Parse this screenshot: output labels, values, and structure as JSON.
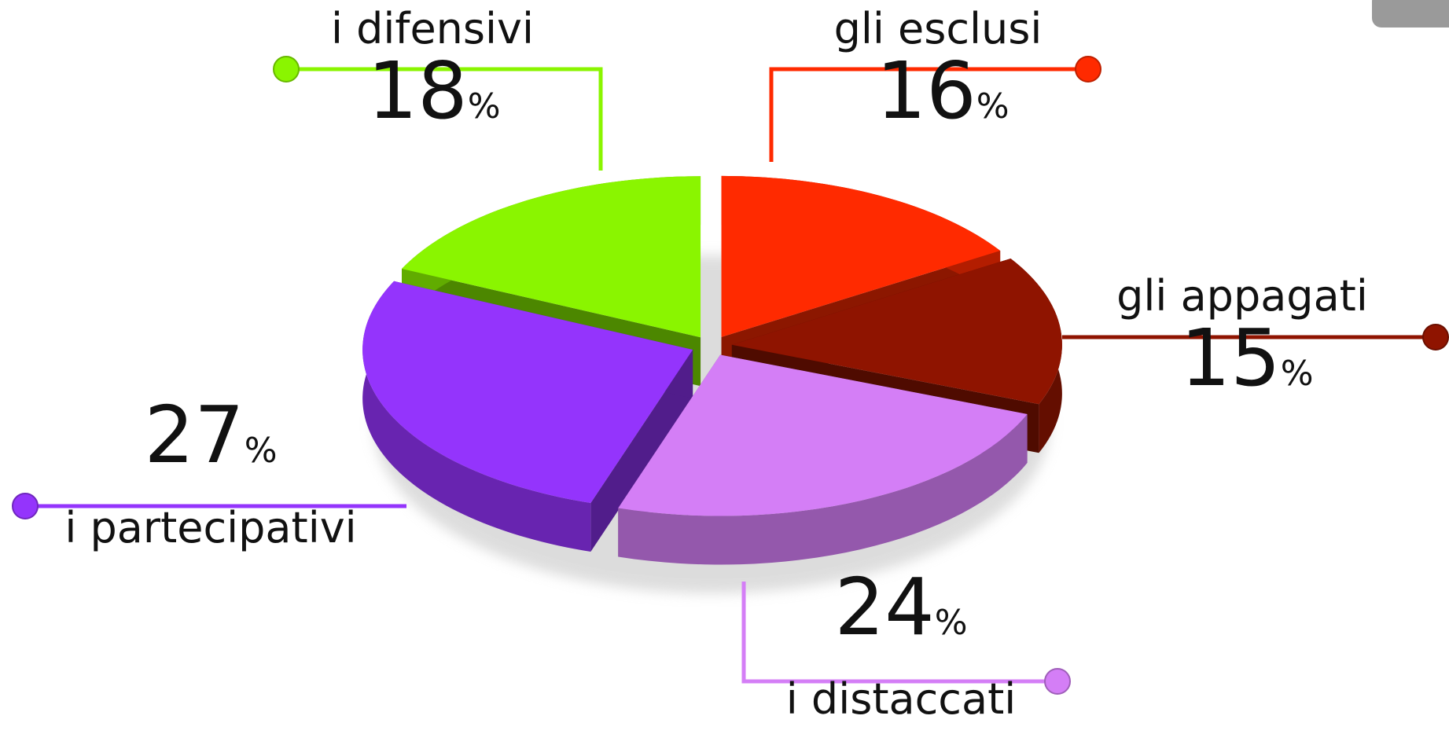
{
  "chart_data": {
    "type": "pie",
    "categories": [
      "gli esclusi",
      "gli appagati",
      "i distaccati",
      "i partecipativi",
      "i difensivi"
    ],
    "values": [
      16,
      15,
      24,
      27,
      18
    ],
    "value_labels": [
      "16%",
      "15%",
      "24%",
      "27%",
      "18%"
    ],
    "colors": [
      "#ff2a00",
      "#8f1400",
      "#d47ef6",
      "#9434fc",
      "#8af500"
    ]
  }
}
